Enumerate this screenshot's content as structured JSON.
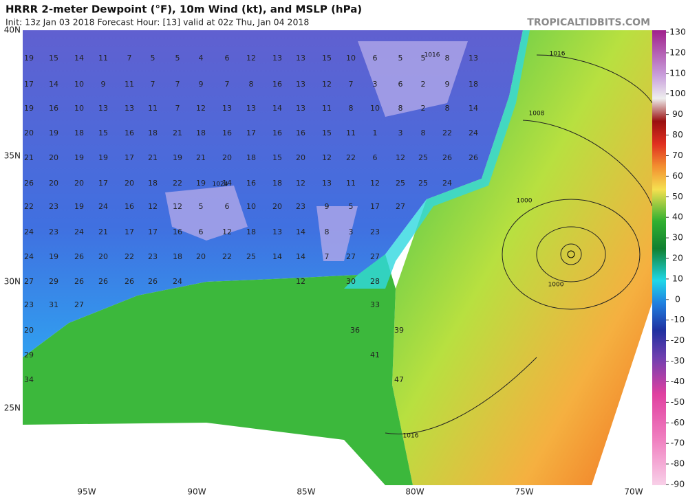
{
  "header": {
    "title": "HRRR 2-meter Dewpoint (°F), 10m Wind (kt), and MSLP (hPa)",
    "subtitle": "Init: 13z Jan 03 2018   Forecast Hour: [13]   valid at 02z Thu, Jan 04 2018",
    "source": "TROPICALTIDBITS.COM"
  },
  "map": {
    "lat_labels": [
      "40N",
      "35N",
      "30N",
      "25N"
    ],
    "lon_labels": [
      "95W",
      "90W",
      "85W",
      "80W",
      "75W",
      "70W"
    ],
    "isobar_labels": [
      "1016",
      "1016",
      "1008",
      "1024",
      "1000",
      "1000",
      "1016"
    ],
    "stations": [
      [
        19,
        15,
        14,
        11,
        7,
        5,
        5,
        4,
        6,
        12,
        13,
        13,
        15,
        10,
        6,
        5,
        5,
        8,
        13
      ],
      [
        17,
        14,
        10,
        9,
        11,
        7,
        7,
        9,
        7,
        8,
        16,
        13,
        12,
        7,
        3,
        6,
        2,
        9,
        18
      ],
      [
        19,
        16,
        10,
        13,
        13,
        11,
        7,
        12,
        13,
        13,
        14,
        13,
        11,
        8,
        10,
        8,
        2,
        8,
        14
      ],
      [
        20,
        19,
        18,
        15,
        16,
        18,
        21,
        18,
        16,
        17,
        16,
        16,
        15,
        11,
        1,
        3,
        8,
        22,
        24
      ],
      [
        21,
        20,
        19,
        19,
        17,
        21,
        19,
        21,
        20,
        18,
        15,
        20,
        12,
        22,
        6,
        12,
        25,
        26,
        26
      ],
      [
        26,
        20,
        20,
        17,
        20,
        18,
        22,
        19,
        14,
        16,
        18,
        12,
        13,
        11,
        12,
        25,
        25,
        24
      ],
      [
        22,
        23,
        19,
        24,
        16,
        12,
        12,
        5,
        6,
        10,
        20,
        23,
        9,
        5,
        17,
        27
      ],
      [
        24,
        23,
        24,
        21,
        17,
        17,
        16,
        6,
        12,
        18,
        13,
        14,
        8,
        3,
        23
      ],
      [
        24,
        19,
        26,
        20,
        22,
        23,
        18,
        20,
        22,
        25,
        14,
        14,
        7,
        27,
        27
      ],
      [
        27,
        29,
        26,
        26,
        26,
        26,
        24,
        12,
        30,
        28
      ],
      [
        23,
        31,
        27,
        33
      ],
      [
        20,
        36,
        39
      ],
      [
        29,
        41
      ],
      [
        34,
        47
      ]
    ]
  },
  "colorbar": {
    "ticks": [
      130,
      120,
      110,
      100,
      90,
      80,
      70,
      60,
      50,
      40,
      30,
      20,
      10,
      0,
      -10,
      -20,
      -30,
      -40,
      -50,
      -60,
      -70,
      -80,
      -90
    ]
  }
}
